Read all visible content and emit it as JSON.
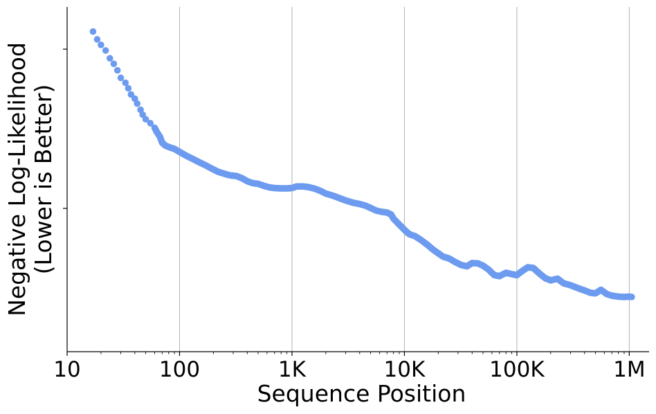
{
  "chart_data": {
    "type": "scatter",
    "xlabel": "Sequence Position",
    "ylabel_lines": [
      "Negative Log-Likelihood",
      "(Lower is Better)"
    ],
    "x_scale": "log",
    "xlim": [
      10,
      1500000
    ],
    "x_ticks": [
      10,
      100,
      1000,
      10000,
      100000,
      1000000
    ],
    "x_tick_labels": [
      "10",
      "100",
      "1K",
      "10K",
      "100K",
      "1M"
    ],
    "y_ticks_labeled": false,
    "ylim": [
      0,
      1
    ],
    "grid": "vertical",
    "marker_color": "#6d9bef",
    "series": [
      {
        "points": [
          [
            17,
            0.95
          ],
          [
            18.5,
            0.926
          ],
          [
            20,
            0.909
          ],
          [
            22,
            0.892
          ],
          [
            24,
            0.868
          ],
          [
            26,
            0.851
          ],
          [
            28,
            0.831
          ],
          [
            30,
            0.808
          ],
          [
            33,
            0.793
          ],
          [
            35,
            0.776
          ],
          [
            37,
            0.757
          ],
          [
            40,
            0.744
          ],
          [
            42,
            0.729
          ],
          [
            45,
            0.71
          ],
          [
            47,
            0.695
          ],
          [
            50,
            0.681
          ],
          [
            55,
            0.669
          ],
          [
            60,
            0.655
          ],
          [
            63,
            0.641
          ],
          [
            67,
            0.627
          ],
          [
            70,
            0.609
          ],
          [
            75,
            0.6
          ],
          [
            80,
            0.596
          ],
          [
            90,
            0.59
          ],
          [
            100,
            0.581
          ],
          [
            115,
            0.569
          ],
          [
            130,
            0.56
          ],
          [
            150,
            0.549
          ],
          [
            170,
            0.54
          ],
          [
            190,
            0.531
          ],
          [
            220,
            0.52
          ],
          [
            250,
            0.514
          ],
          [
            280,
            0.509
          ],
          [
            320,
            0.507
          ],
          [
            360,
            0.5
          ],
          [
            400,
            0.491
          ],
          [
            450,
            0.485
          ],
          [
            500,
            0.483
          ],
          [
            560,
            0.477
          ],
          [
            630,
            0.472
          ],
          [
            700,
            0.47
          ],
          [
            800,
            0.469
          ],
          [
            900,
            0.469
          ],
          [
            1000,
            0.47
          ],
          [
            1100,
            0.475
          ],
          [
            1250,
            0.475
          ],
          [
            1400,
            0.473
          ],
          [
            1600,
            0.468
          ],
          [
            1800,
            0.461
          ],
          [
            2000,
            0.453
          ],
          [
            2300,
            0.447
          ],
          [
            2600,
            0.44
          ],
          [
            3000,
            0.432
          ],
          [
            3500,
            0.425
          ],
          [
            4000,
            0.421
          ],
          [
            4500,
            0.416
          ],
          [
            5000,
            0.409
          ],
          [
            5600,
            0.401
          ],
          [
            6300,
            0.397
          ],
          [
            7000,
            0.395
          ],
          [
            7600,
            0.389
          ],
          [
            8000,
            0.376
          ],
          [
            9000,
            0.358
          ],
          [
            10000,
            0.342
          ],
          [
            11000,
            0.329
          ],
          [
            12500,
            0.322
          ],
          [
            14000,
            0.311
          ],
          [
            16000,
            0.296
          ],
          [
            18000,
            0.281
          ],
          [
            20000,
            0.27
          ],
          [
            22000,
            0.26
          ],
          [
            25000,
            0.254
          ],
          [
            28000,
            0.244
          ],
          [
            32000,
            0.234
          ],
          [
            36000,
            0.23
          ],
          [
            40000,
            0.24
          ],
          [
            45000,
            0.239
          ],
          [
            50000,
            0.232
          ],
          [
            56000,
            0.22
          ],
          [
            63000,
            0.203
          ],
          [
            70000,
            0.2
          ],
          [
            80000,
            0.21
          ],
          [
            90000,
            0.206
          ],
          [
            100000,
            0.203
          ],
          [
            110000,
            0.214
          ],
          [
            125000,
            0.227
          ],
          [
            140000,
            0.225
          ],
          [
            160000,
            0.207
          ],
          [
            180000,
            0.193
          ],
          [
            200000,
            0.187
          ],
          [
            230000,
            0.192
          ],
          [
            260000,
            0.178
          ],
          [
            300000,
            0.172
          ],
          [
            350000,
            0.163
          ],
          [
            400000,
            0.156
          ],
          [
            450000,
            0.149
          ],
          [
            500000,
            0.147
          ],
          [
            560000,
            0.158
          ],
          [
            630000,
            0.145
          ],
          [
            700000,
            0.14
          ],
          [
            800000,
            0.137
          ],
          [
            900000,
            0.136
          ],
          [
            1000000,
            0.137
          ],
          [
            1050000,
            0.136
          ]
        ]
      }
    ]
  }
}
